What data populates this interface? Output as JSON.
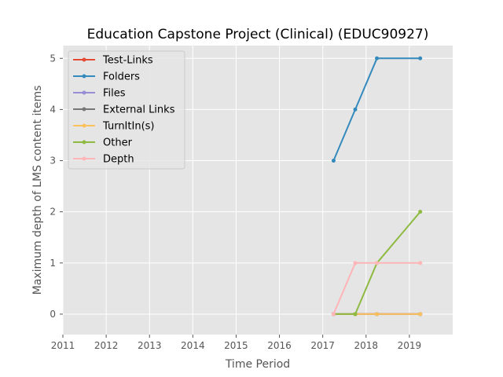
{
  "chart_data": {
    "type": "line",
    "title": "Education Capstone Project (Clinical) (EDUC90927)",
    "xlabel": "Time Period",
    "ylabel": "Maximum depth of LMS content items",
    "xlim": [
      2011,
      2020
    ],
    "ylim": [
      -0.4,
      5.25
    ],
    "xticks": [
      "2011",
      "2012",
      "2013",
      "2014",
      "2015",
      "2016",
      "2017",
      "2018",
      "2019"
    ],
    "yticks": [
      "0",
      "1",
      "2",
      "3",
      "4",
      "5"
    ],
    "grid": true,
    "legend_position": "top-left",
    "x": [
      2017.25,
      2017.75,
      2018.25,
      2019.25
    ],
    "series": [
      {
        "name": "Test-Links",
        "color": "#e24a33",
        "values": [
          0,
          0,
          0,
          0
        ]
      },
      {
        "name": "Folders",
        "color": "#348abd",
        "values": [
          3,
          4,
          5,
          5
        ]
      },
      {
        "name": "Files",
        "color": "#988ed5",
        "values": [
          0,
          0,
          0,
          0
        ]
      },
      {
        "name": "External Links",
        "color": "#777777",
        "values": [
          0,
          0,
          0,
          0
        ]
      },
      {
        "name": "TurnItIn(s)",
        "color": "#fbc15e",
        "values": [
          0,
          0,
          0,
          0
        ]
      },
      {
        "name": "Other",
        "color": "#8eba42",
        "values": [
          0,
          0,
          1,
          2
        ]
      },
      {
        "name": "Depth",
        "color": "#ffb5b8",
        "values": [
          0,
          1,
          1,
          1
        ]
      }
    ]
  }
}
